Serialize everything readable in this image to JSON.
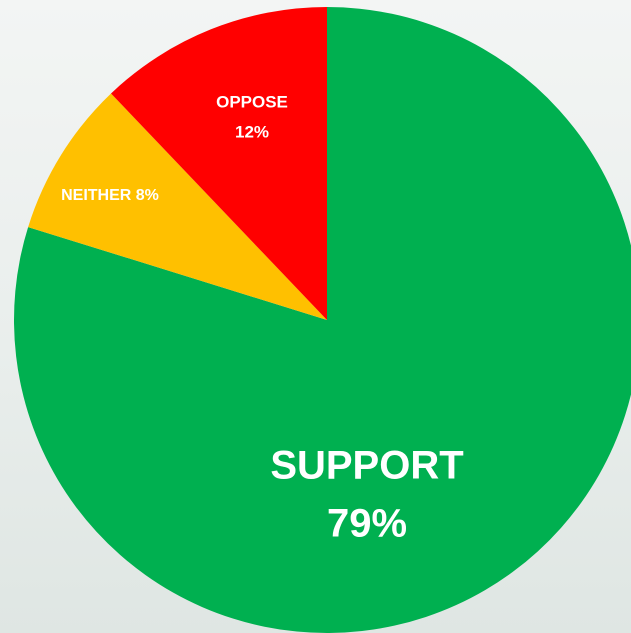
{
  "chart_data": {
    "type": "pie",
    "categories": [
      "SUPPORT",
      "NEITHER",
      "OPPOSE"
    ],
    "values": [
      79,
      8,
      12
    ],
    "value_labels": [
      "79%",
      "8%",
      "12%"
    ],
    "colors": [
      "#00b050",
      "#ffc000",
      "#ff0000"
    ]
  }
}
